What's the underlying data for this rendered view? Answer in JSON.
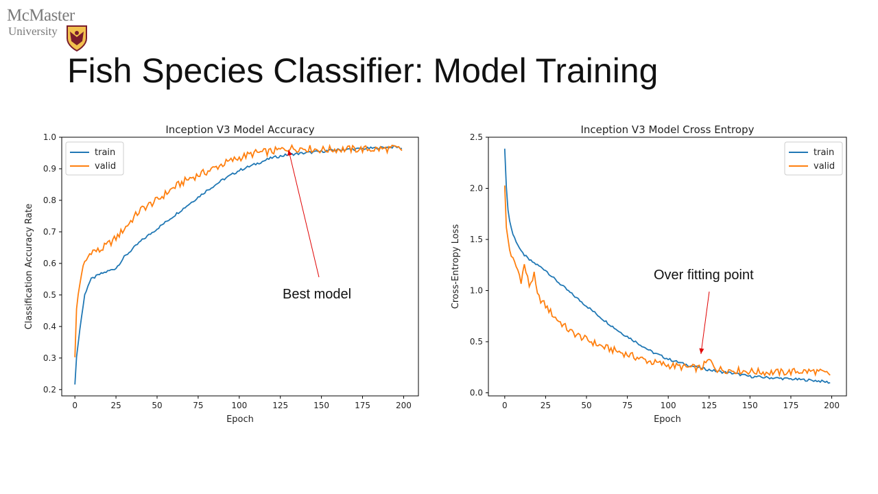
{
  "logo": {
    "name": "McMaster",
    "subtitle": "University"
  },
  "slide": {
    "title": "Fish Species Classifier: Model Training"
  },
  "chart_data": [
    {
      "type": "line",
      "title": "Inception V3 Model Accuracy",
      "xlabel": "Epoch",
      "ylabel": "Classification Accuracy Rate",
      "xlim": [
        -8,
        209
      ],
      "ylim": [
        0.18,
        1.0
      ],
      "xticks": [
        0,
        25,
        50,
        75,
        100,
        125,
        150,
        175,
        200
      ],
      "yticks": [
        0.2,
        0.3,
        0.4,
        0.5,
        0.6,
        0.7,
        0.8,
        0.9,
        1.0
      ],
      "legend": "top-left",
      "grid": false,
      "series": [
        {
          "name": "train",
          "color": "#1f77b4",
          "x": [
            0,
            1,
            2,
            4,
            6,
            8,
            10,
            15,
            20,
            25,
            30,
            40,
            50,
            60,
            70,
            80,
            90,
            100,
            110,
            120,
            130,
            140,
            150,
            160,
            170,
            180,
            190,
            195,
            199
          ],
          "y": [
            0.22,
            0.3,
            0.35,
            0.43,
            0.5,
            0.53,
            0.55,
            0.565,
            0.575,
            0.585,
            0.62,
            0.67,
            0.71,
            0.75,
            0.79,
            0.83,
            0.865,
            0.895,
            0.915,
            0.935,
            0.945,
            0.95,
            0.955,
            0.96,
            0.962,
            0.965,
            0.968,
            0.97,
            0.965
          ]
        },
        {
          "name": "valid",
          "color": "#ff7f0e",
          "x": [
            0,
            1,
            2,
            4,
            6,
            8,
            10,
            15,
            20,
            25,
            30,
            40,
            50,
            60,
            70,
            80,
            90,
            100,
            110,
            120,
            130,
            140,
            150,
            160,
            170,
            180,
            190,
            195,
            199
          ],
          "y": [
            0.31,
            0.45,
            0.5,
            0.57,
            0.6,
            0.62,
            0.64,
            0.64,
            0.66,
            0.68,
            0.71,
            0.77,
            0.8,
            0.84,
            0.87,
            0.89,
            0.915,
            0.935,
            0.95,
            0.955,
            0.965,
            0.965,
            0.96,
            0.962,
            0.962,
            0.962,
            0.963,
            0.965,
            0.96
          ]
        }
      ],
      "annotation": {
        "text": "Best model",
        "point": [
          130,
          0.96
        ]
      }
    },
    {
      "type": "line",
      "title": "Inception V3 Model Cross Entropy",
      "xlabel": "Epoch",
      "ylabel": "Cross-Entropy Loss",
      "xlim": [
        -10,
        209
      ],
      "ylim": [
        -0.03,
        2.5
      ],
      "xticks": [
        0,
        25,
        50,
        75,
        100,
        125,
        150,
        175,
        200
      ],
      "yticks": [
        0.0,
        0.5,
        1.0,
        1.5,
        2.0,
        2.5
      ],
      "legend": "top-right",
      "grid": false,
      "series": [
        {
          "name": "train",
          "color": "#1f77b4",
          "x": [
            0,
            1,
            2,
            3,
            5,
            8,
            10,
            15,
            20,
            25,
            30,
            40,
            50,
            60,
            70,
            80,
            90,
            100,
            110,
            120,
            130,
            140,
            150,
            160,
            170,
            180,
            190,
            195,
            199
          ],
          "y": [
            2.4,
            2.0,
            1.8,
            1.68,
            1.55,
            1.45,
            1.38,
            1.3,
            1.25,
            1.2,
            1.12,
            0.98,
            0.85,
            0.72,
            0.6,
            0.5,
            0.4,
            0.33,
            0.28,
            0.24,
            0.21,
            0.19,
            0.16,
            0.15,
            0.14,
            0.13,
            0.12,
            0.11,
            0.1
          ]
        },
        {
          "name": "valid",
          "color": "#ff7f0e",
          "x": [
            0,
            1,
            2,
            3,
            5,
            8,
            10,
            12,
            15,
            18,
            20,
            25,
            30,
            40,
            50,
            60,
            70,
            80,
            90,
            100,
            110,
            120,
            125,
            130,
            140,
            150,
            160,
            170,
            180,
            190,
            199
          ],
          "y": [
            2.05,
            1.6,
            1.5,
            1.4,
            1.3,
            1.2,
            1.1,
            1.25,
            1.05,
            1.15,
            0.95,
            0.85,
            0.75,
            0.6,
            0.52,
            0.45,
            0.4,
            0.35,
            0.3,
            0.27,
            0.25,
            0.24,
            0.32,
            0.23,
            0.22,
            0.21,
            0.2,
            0.2,
            0.21,
            0.21,
            0.18
          ]
        }
      ],
      "annotation": {
        "text": "Over fitting point",
        "point": [
          120,
          0.38
        ]
      }
    }
  ]
}
